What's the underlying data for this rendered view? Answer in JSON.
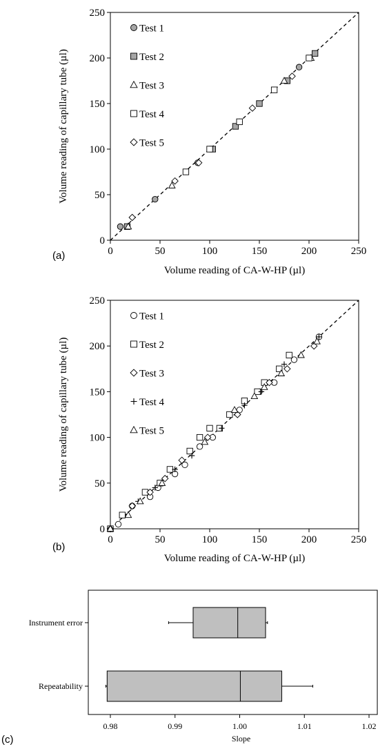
{
  "chart_data": [
    {
      "panel_label": "(a)",
      "type": "scatter",
      "xlabel": "Volume reading of CA-W-HP (µl)",
      "ylabel": "Volume reading of capillary tube (µl)",
      "xlim": [
        0,
        250
      ],
      "ylim": [
        0,
        250
      ],
      "xticks": [
        "0",
        "50",
        "100",
        "150",
        "200",
        "250"
      ],
      "yticks": [
        "0",
        "50",
        "100",
        "150",
        "200",
        "250"
      ],
      "reference_line": "1:1 dashed",
      "legend_position": "top-left",
      "series": [
        {
          "name": "Test 1",
          "marker": "circle-filled",
          "color": "#a6a6a6",
          "points": [
            [
              10,
              15
            ],
            [
              45,
              45
            ],
            [
              88,
              85
            ],
            [
              130,
              130
            ],
            [
              190,
              190
            ]
          ]
        },
        {
          "name": "Test 2",
          "marker": "square-filled",
          "color": "#a6a6a6",
          "points": [
            [
              17,
              15
            ],
            [
              103,
              100
            ],
            [
              126,
              125
            ],
            [
              150,
              150
            ],
            [
              178,
              175
            ],
            [
              206,
              205
            ]
          ]
        },
        {
          "name": "Test 3",
          "marker": "triangle-open",
          "color": "#ffffff",
          "points": [
            [
              18,
              15
            ],
            [
              62,
              60
            ],
            [
              175,
              175
            ],
            [
              202,
              200
            ]
          ]
        },
        {
          "name": "Test 4",
          "marker": "square-open",
          "color": "#ffffff",
          "points": [
            [
              76,
              75
            ],
            [
              100,
              100
            ],
            [
              130,
              130
            ],
            [
              165,
              165
            ],
            [
              200,
              200
            ]
          ]
        },
        {
          "name": "Test 5",
          "marker": "diamond-open",
          "color": "#ffffff",
          "points": [
            [
              22,
              25
            ],
            [
              65,
              65
            ],
            [
              89,
              85
            ],
            [
              143,
              145
            ],
            [
              183,
              180
            ]
          ]
        }
      ]
    },
    {
      "panel_label": "(b)",
      "type": "scatter",
      "xlabel": "Volume reading of CA-W-HP (µl)",
      "ylabel": "Volume reading of capillary tube (µl)",
      "xlim": [
        0,
        250
      ],
      "ylim": [
        0,
        250
      ],
      "xticks": [
        "0",
        "50",
        "100",
        "150",
        "200",
        "250"
      ],
      "yticks": [
        "0",
        "50",
        "100",
        "150",
        "200",
        "250"
      ],
      "reference_line": "1:1 dashed",
      "legend_position": "top-left",
      "series": [
        {
          "name": "Test 1",
          "marker": "circle-open",
          "color": "#ffffff",
          "points": [
            [
              0,
              0
            ],
            [
              8,
              5
            ],
            [
              22,
              25
            ],
            [
              40,
              35
            ],
            [
              48,
              45
            ],
            [
              65,
              60
            ],
            [
              75,
              70
            ],
            [
              90,
              90
            ],
            [
              103,
              100
            ],
            [
              130,
              130
            ],
            [
              150,
              150
            ],
            [
              165,
              160
            ],
            [
              185,
              185
            ],
            [
              210,
              210
            ]
          ]
        },
        {
          "name": "Test 2",
          "marker": "square-open",
          "color": "#ffffff",
          "points": [
            [
              0,
              0
            ],
            [
              12,
              15
            ],
            [
              35,
              40
            ],
            [
              50,
              50
            ],
            [
              60,
              65
            ],
            [
              80,
              85
            ],
            [
              90,
              100
            ],
            [
              100,
              110
            ],
            [
              110,
              110
            ],
            [
              120,
              125
            ],
            [
              135,
              140
            ],
            [
              148,
              150
            ],
            [
              155,
              160
            ],
            [
              170,
              175
            ],
            [
              180,
              190
            ]
          ]
        },
        {
          "name": "Test 3",
          "marker": "diamond-open",
          "color": "#ffffff",
          "points": [
            [
              0,
              0
            ],
            [
              22,
              25
            ],
            [
              40,
              40
            ],
            [
              55,
              55
            ],
            [
              72,
              75
            ],
            [
              98,
              100
            ],
            [
              128,
              125
            ],
            [
              160,
              160
            ],
            [
              178,
              175
            ],
            [
              205,
              200
            ]
          ]
        },
        {
          "name": "Test 4",
          "marker": "plus",
          "color": "#000000",
          "points": [
            [
              0,
              0
            ],
            [
              28,
              30
            ],
            [
              45,
              45
            ],
            [
              65,
              65
            ],
            [
              82,
              80
            ],
            [
              112,
              110
            ],
            [
              135,
              135
            ],
            [
              152,
              150
            ],
            [
              175,
              180
            ],
            [
              210,
              210
            ]
          ]
        },
        {
          "name": "Test 5",
          "marker": "triangle-open",
          "color": "#ffffff",
          "points": [
            [
              0,
              0
            ],
            [
              18,
              15
            ],
            [
              30,
              30
            ],
            [
              52,
              50
            ],
            [
              95,
              95
            ],
            [
              125,
              130
            ],
            [
              145,
              145
            ],
            [
              155,
              155
            ],
            [
              172,
              170
            ],
            [
              192,
              190
            ],
            [
              208,
              205
            ]
          ]
        }
      ]
    },
    {
      "panel_label": "(c)",
      "type": "boxplot",
      "orientation": "horizontal",
      "xlabel": "Slope",
      "xlim": [
        0.978,
        1.02
      ],
      "xticks": [
        "0.98",
        "0.99",
        "1.00",
        "1.01",
        "1.02"
      ],
      "box_color": "#bfbfbf",
      "categories": [
        "Instrument error",
        "Repeatability"
      ],
      "boxes": [
        {
          "name": "Instrument error",
          "whisker_low": 0.989,
          "q1": 0.9928,
          "median": 0.9997,
          "q3": 1.004,
          "whisker_high": 1.0043
        },
        {
          "name": "Repeatability",
          "whisker_low": 0.9793,
          "q1": 0.9795,
          "median": 1.0001,
          "q3": 1.0065,
          "whisker_high": 1.0113
        }
      ]
    }
  ]
}
